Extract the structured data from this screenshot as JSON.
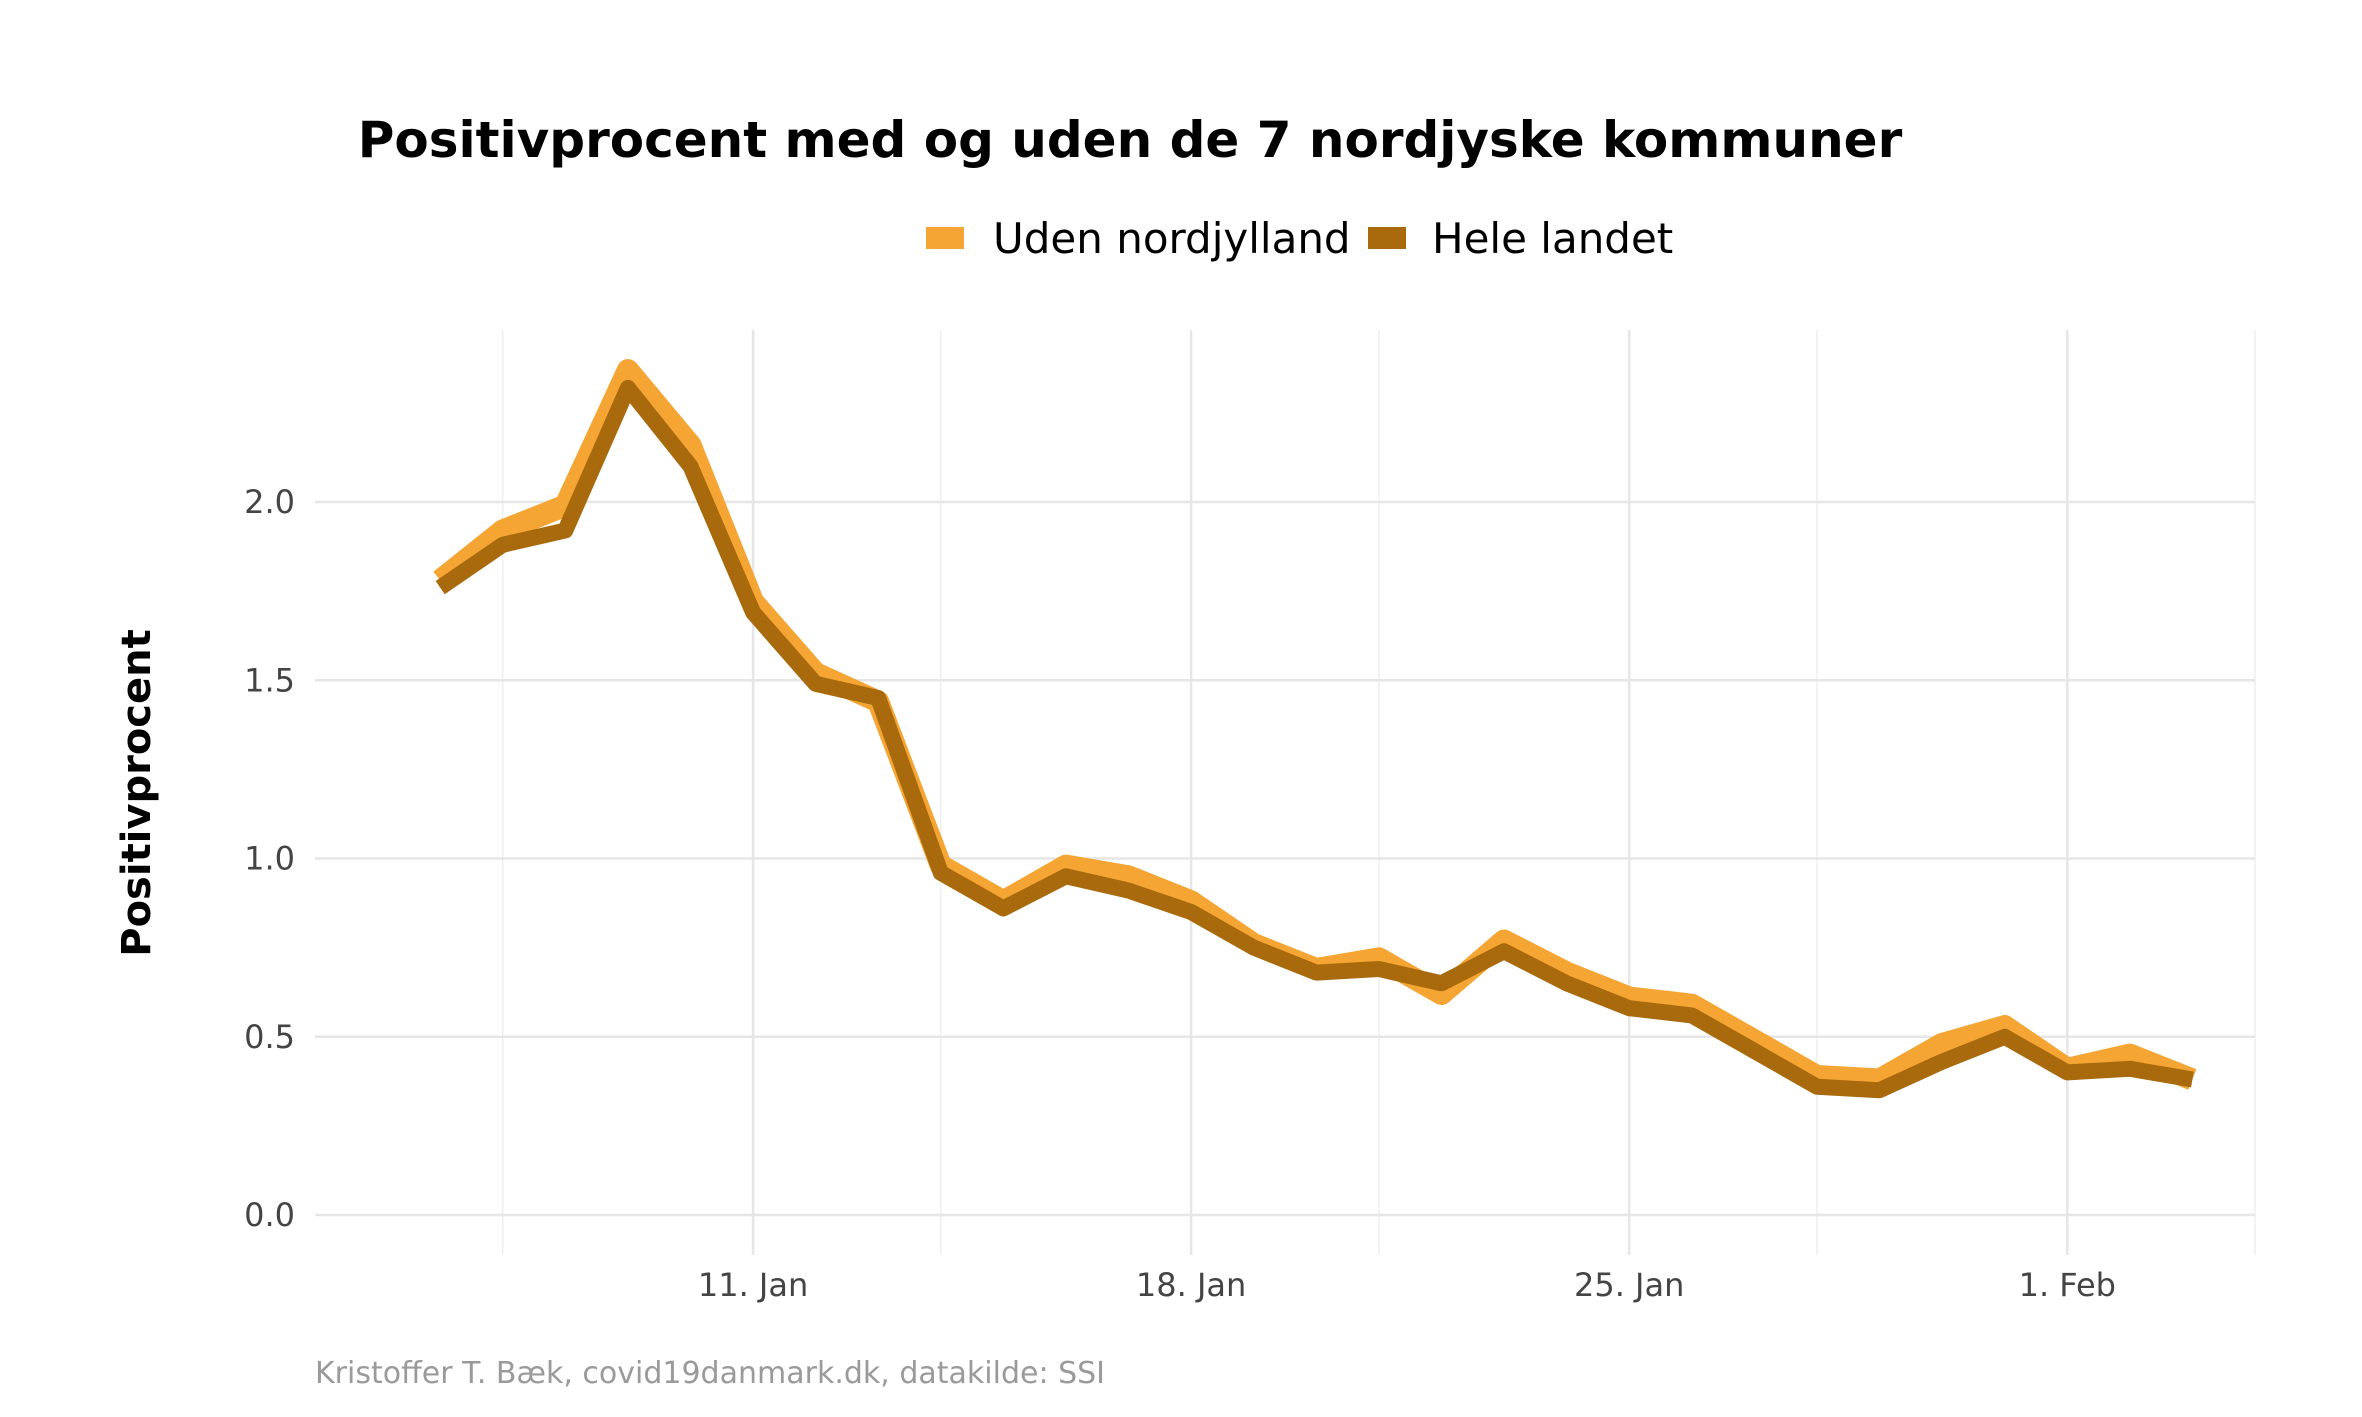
{
  "chart_data": {
    "type": "line",
    "title": "Positivprocent med og uden de 7 nordjyske kommuner",
    "xlabel": "",
    "ylabel": "Positivprocent",
    "caption": "Kristoffer T. Bæk, covid19danmark.dk, datakilde: SSI",
    "x": [
      "2021-01-06",
      "2021-01-07",
      "2021-01-08",
      "2021-01-09",
      "2021-01-10",
      "2021-01-11",
      "2021-01-12",
      "2021-01-13",
      "2021-01-14",
      "2021-01-15",
      "2021-01-16",
      "2021-01-17",
      "2021-01-18",
      "2021-01-19",
      "2021-01-20",
      "2021-01-21",
      "2021-01-22",
      "2021-01-23",
      "2021-01-24",
      "2021-01-25",
      "2021-01-26",
      "2021-01-27",
      "2021-01-28",
      "2021-01-29",
      "2021-01-30",
      "2021-01-31",
      "2021-02-01",
      "2021-02-02",
      "2021-02-03"
    ],
    "x_ticks": [
      {
        "date": "2021-01-11",
        "label": "11. Jan"
      },
      {
        "date": "2021-01-18",
        "label": "18. Jan"
      },
      {
        "date": "2021-01-25",
        "label": "25. Jan"
      },
      {
        "date": "2021-02-01",
        "label": "1. Feb"
      }
    ],
    "x_minor_ticks": [
      "2021-01-07",
      "2021-01-14",
      "2021-01-21",
      "2021-01-28",
      "2021-02-04"
    ],
    "xlim": [
      "2021-01-04",
      "2021-02-04"
    ],
    "ylim": [
      0,
      2.6
    ],
    "y_ticks": [
      0.0,
      0.5,
      1.0,
      1.5,
      2.0
    ],
    "y_tick_labels": [
      "0.0",
      "0.5",
      "1.0",
      "1.5",
      "2.0"
    ],
    "grid": true,
    "legend_position": "top",
    "series": [
      {
        "name": "Uden nordjylland",
        "color": "#F4A534",
        "values": [
          1.78,
          1.92,
          1.99,
          2.37,
          2.16,
          1.72,
          1.52,
          1.44,
          0.98,
          0.88,
          0.98,
          0.95,
          0.88,
          0.76,
          0.69,
          0.72,
          0.62,
          0.77,
          0.68,
          0.61,
          0.59,
          0.49,
          0.39,
          0.38,
          0.48,
          0.53,
          0.41,
          0.45,
          0.38
        ]
      },
      {
        "name": "Hele landet",
        "color": "#A86A0C",
        "values": [
          1.76,
          1.88,
          1.92,
          2.32,
          2.1,
          1.69,
          1.49,
          1.45,
          0.96,
          0.86,
          0.95,
          0.91,
          0.85,
          0.75,
          0.68,
          0.69,
          0.65,
          0.74,
          0.65,
          0.58,
          0.56,
          0.46,
          0.36,
          0.35,
          0.43,
          0.5,
          0.4,
          0.41,
          0.38
        ]
      }
    ]
  }
}
